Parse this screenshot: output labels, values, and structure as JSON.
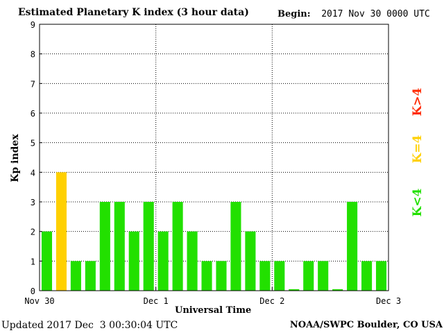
{
  "header": {
    "title": "Estimated Planetary K index (3 hour data)",
    "begin_label": "Begin:",
    "begin_value": "2017 Nov 30 0000 UTC"
  },
  "footer": {
    "updated": "Updated 2017 Dec  3 00:30:04 UTC",
    "credit": "NOAA/SWPC Boulder, CO USA"
  },
  "legend": {
    "gt": {
      "label": "K>4",
      "color": "#ff2a00"
    },
    "eq": {
      "label": "K=4",
      "color": "#ffd000"
    },
    "lt": {
      "label": "K<4",
      "color": "#22e000"
    }
  },
  "chart_data": {
    "type": "bar",
    "title": "Estimated Planetary K index (3 hour data)",
    "xlabel": "Universal Time",
    "ylabel": "Kp index",
    "ylim": [
      0,
      9
    ],
    "yticks": [
      0,
      1,
      2,
      3,
      4,
      5,
      6,
      7,
      8,
      9
    ],
    "xticks": [
      "Nov 30",
      "Dec 1",
      "Dec 2",
      "Dec 3"
    ],
    "grid": true,
    "interval_hours": 3,
    "values": [
      2,
      4,
      1,
      1,
      3,
      3,
      2,
      3,
      2,
      3,
      2,
      1,
      1,
      3,
      2,
      1,
      1,
      0.05,
      1,
      1,
      0.05,
      3,
      1,
      1
    ]
  }
}
